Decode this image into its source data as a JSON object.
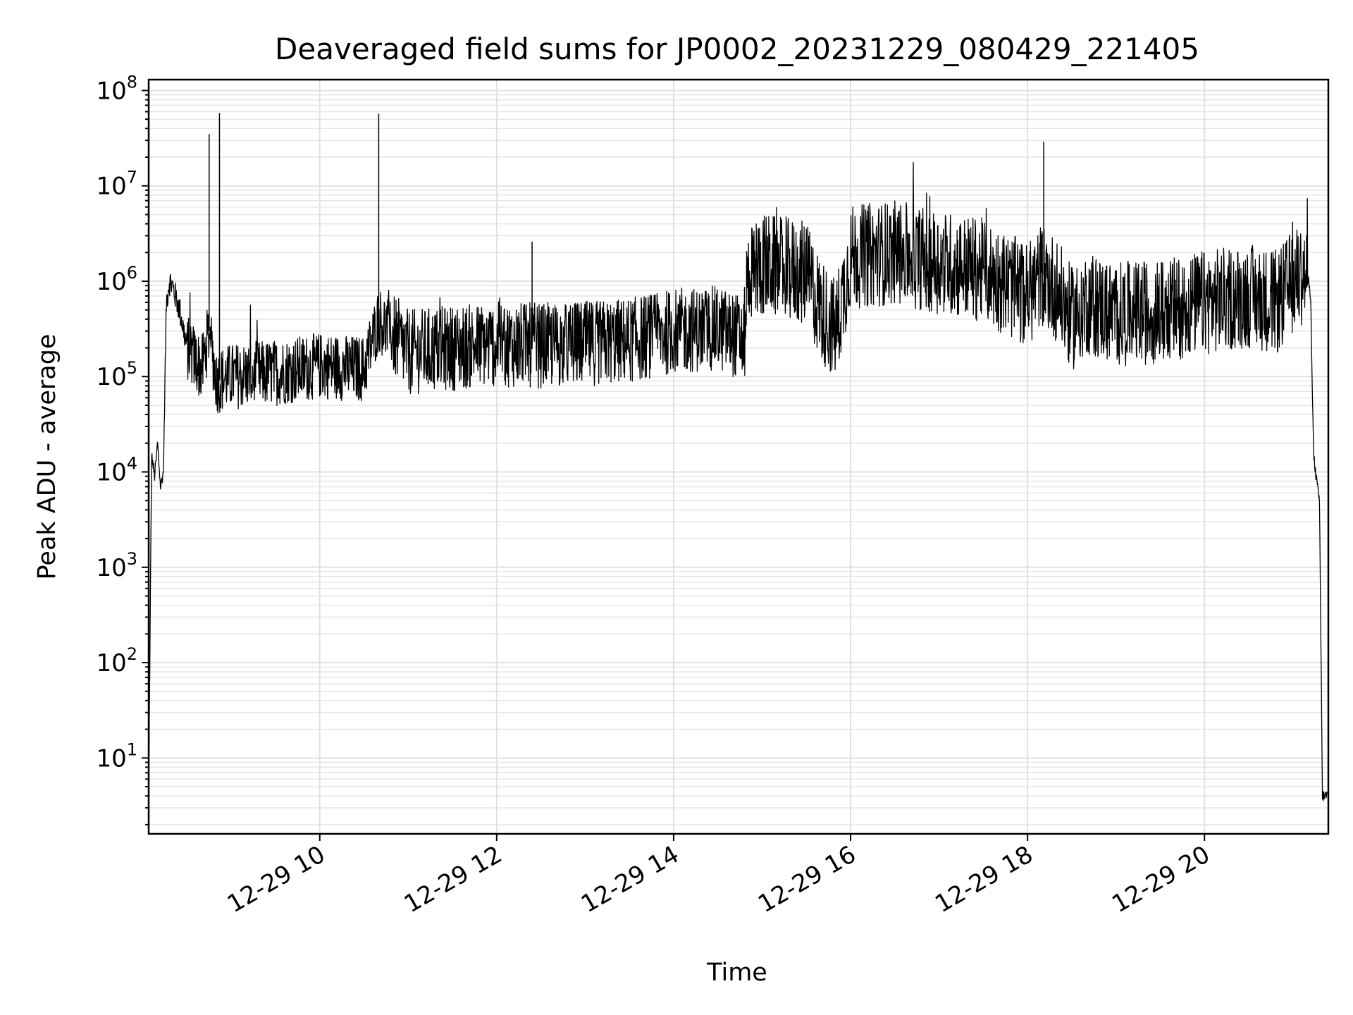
{
  "chart_data": {
    "type": "line",
    "title": "Deaveraged field sums for JP0002_20231229_080429_221405",
    "xlabel": "Time",
    "ylabel": "Peak ADU - average",
    "yscale": "log",
    "ylim": [
      1.6,
      130000000
    ],
    "y_ticks": [
      {
        "value": 10,
        "base": "10",
        "exp": "1"
      },
      {
        "value": 100,
        "base": "10",
        "exp": "2"
      },
      {
        "value": 1000,
        "base": "10",
        "exp": "3"
      },
      {
        "value": 10000,
        "base": "10",
        "exp": "4"
      },
      {
        "value": 100000,
        "base": "10",
        "exp": "5"
      },
      {
        "value": 1000000,
        "base": "10",
        "exp": "6"
      },
      {
        "value": 10000000,
        "base": "10",
        "exp": "7"
      },
      {
        "value": 100000000,
        "base": "10",
        "exp": "8"
      }
    ],
    "xlim": [
      "12-29 08:04",
      "12-29 21:24"
    ],
    "x_ticks": [
      {
        "value": "12-29 10:00",
        "label": "12-29 10"
      },
      {
        "value": "12-29 12:00",
        "label": "12-29 12"
      },
      {
        "value": "12-29 14:00",
        "label": "12-29 14"
      },
      {
        "value": "12-29 16:00",
        "label": "12-29 16"
      },
      {
        "value": "12-29 18:00",
        "label": "12-29 18"
      },
      {
        "value": "12-29 20:00",
        "label": "12-29 20"
      }
    ],
    "grid": "major and minor",
    "line_color": "#000000",
    "series": [
      {
        "x": [
          "12-29 08:04",
          "12-29 08:06",
          "12-29 08:08",
          "12-29 08:10",
          "12-29 08:12",
          "12-29 08:14",
          "12-29 08:16",
          "12-29 08:18",
          "12-29 08:20",
          "12-29 08:25",
          "12-29 08:30",
          "12-29 08:40",
          "12-29 08:45",
          "12-29 08:50",
          "12-29 09:00",
          "12-29 09:30",
          "12-29 10:00",
          "12-29 10:30",
          "12-29 10:40",
          "12-29 11:00",
          "12-29 11:30",
          "12-29 12:00",
          "12-29 12:30",
          "12-29 13:00",
          "12-29 13:30",
          "12-29 14:00",
          "12-29 14:30",
          "12-29 14:48",
          "12-29 14:50",
          "12-29 15:00",
          "12-29 15:30",
          "12-29 15:40",
          "12-29 15:50",
          "12-29 16:00",
          "12-29 16:30",
          "12-29 17:00",
          "12-29 17:30",
          "12-29 18:00",
          "12-29 18:10",
          "12-29 18:20",
          "12-29 18:30",
          "12-29 18:40",
          "12-29 19:00",
          "12-29 19:30",
          "12-29 20:00",
          "12-29 20:30",
          "12-29 20:50",
          "12-29 21:00",
          "12-29 21:06",
          "12-29 21:10",
          "12-29 21:12",
          "12-29 21:14",
          "12-29 21:16",
          "12-29 21:18",
          "12-29 21:20",
          "12-29 21:22",
          "12-29 21:24"
        ],
        "y": [
          4,
          15000,
          9000,
          20000,
          7000,
          10000,
          600000,
          1000000,
          900000,
          500000,
          200000,
          120000,
          300000,
          90000,
          100000,
          110000,
          130000,
          120000,
          400000,
          180000,
          200000,
          220000,
          210000,
          220000,
          240000,
          300000,
          320000,
          250000,
          1200000,
          1500000,
          1200000,
          500000,
          300000,
          1800000,
          2000000,
          1600000,
          1300000,
          700000,
          1200000,
          800000,
          400000,
          600000,
          450000,
          480000,
          600000,
          700000,
          600000,
          1000000,
          1200000,
          1100000,
          700000,
          15000,
          8000,
          5000,
          4,
          4,
          4
        ]
      }
    ],
    "spikes": [
      {
        "x": "12-29 08:45",
        "y": 35000000
      },
      {
        "x": "12-29 08:52",
        "y": 58000000
      },
      {
        "x": "12-29 10:40",
        "y": 57000000
      },
      {
        "x": "12-29 12:24",
        "y": 2600000
      },
      {
        "x": "12-29 18:11",
        "y": 29000000
      }
    ]
  }
}
